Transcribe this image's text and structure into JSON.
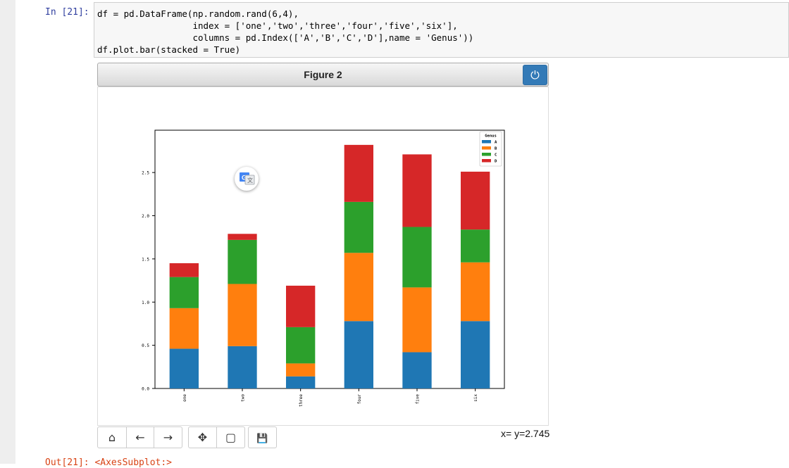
{
  "notebook": {
    "in_prompt": "In  [21]:",
    "out_prompt": "Out[21]: <AxesSubplot:>",
    "code_lines": [
      "df = pd.DataFrame(np.random.rand(6,4),",
      "                  index = ['one','two','three','four','five','six'],",
      "                  columns = pd.Index(['A','B','C','D'],name = 'Genus'))",
      "df.plot.bar(stacked = True)"
    ]
  },
  "figure": {
    "title": "Figure 2",
    "coord_readout": "x= y=2.745",
    "toolbar": [
      {
        "name": "home-icon",
        "glyph": "⌂"
      },
      {
        "name": "back-icon",
        "glyph": "←"
      },
      {
        "name": "forward-icon",
        "glyph": "→"
      },
      {
        "name": "move-icon",
        "glyph": "✥"
      },
      {
        "name": "zoom-rect-icon",
        "glyph": "▢"
      },
      {
        "name": "save-icon",
        "glyph": "💾"
      }
    ]
  },
  "chart_data": {
    "type": "bar",
    "stacked": true,
    "categories": [
      "one",
      "two",
      "three",
      "four",
      "five",
      "six"
    ],
    "series": [
      {
        "name": "A",
        "color": "#1f77b4",
        "values": [
          0.46,
          0.49,
          0.14,
          0.78,
          0.42,
          0.78
        ]
      },
      {
        "name": "B",
        "color": "#ff7f0e",
        "values": [
          0.47,
          0.72,
          0.15,
          0.79,
          0.75,
          0.68
        ]
      },
      {
        "name": "C",
        "color": "#2ca02c",
        "values": [
          0.36,
          0.51,
          0.42,
          0.59,
          0.7,
          0.38
        ]
      },
      {
        "name": "D",
        "color": "#d62728",
        "values": [
          0.16,
          0.07,
          0.48,
          0.66,
          0.84,
          0.67
        ]
      }
    ],
    "legend_title": "Genus",
    "legend_position": "top-right",
    "ylim": [
      0,
      2.99
    ],
    "yticks": [
      "0.0",
      "0.5",
      "1.0",
      "1.5",
      "2.0",
      "2.5"
    ],
    "grid": false
  }
}
